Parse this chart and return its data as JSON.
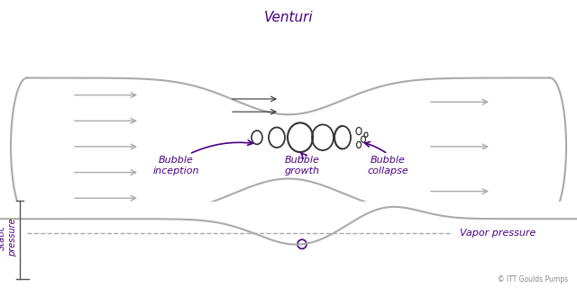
{
  "title": "Venturi",
  "arrow_color": "#4B0082",
  "pipe_color": "#aaaaaa",
  "bubble_color": "#333333",
  "text_color": "#4B0082",
  "static_pressure_label": "Static\npressure",
  "vapor_pressure_label": "Vapor pressure",
  "bubble_inception_label": "Bubble\ninception",
  "bubble_growth_label": "Bubble\ngrowth",
  "bubble_collapse_label": "Bubble\ncollapse",
  "copyright": "© ITT Goulds Pumps",
  "bg_color": "#ffffff",
  "fig_width": 6.4,
  "fig_height": 3.2
}
